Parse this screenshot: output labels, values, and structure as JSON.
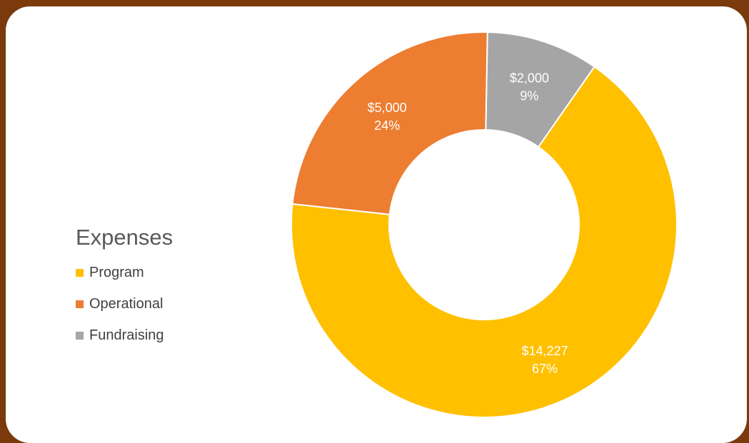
{
  "chart_data": {
    "type": "pie",
    "title": "Expenses",
    "donut": true,
    "categories": [
      "Program",
      "Operational",
      "Fundraising"
    ],
    "values": [
      14227,
      5000,
      2000
    ],
    "value_labels": [
      "$14,227",
      "$5,000",
      "$2,000"
    ],
    "percent_labels": [
      "67%",
      "24%",
      "9%"
    ],
    "colors": [
      "#ffc000",
      "#ed7d31",
      "#a5a5a5"
    ],
    "legend_position": "left"
  }
}
